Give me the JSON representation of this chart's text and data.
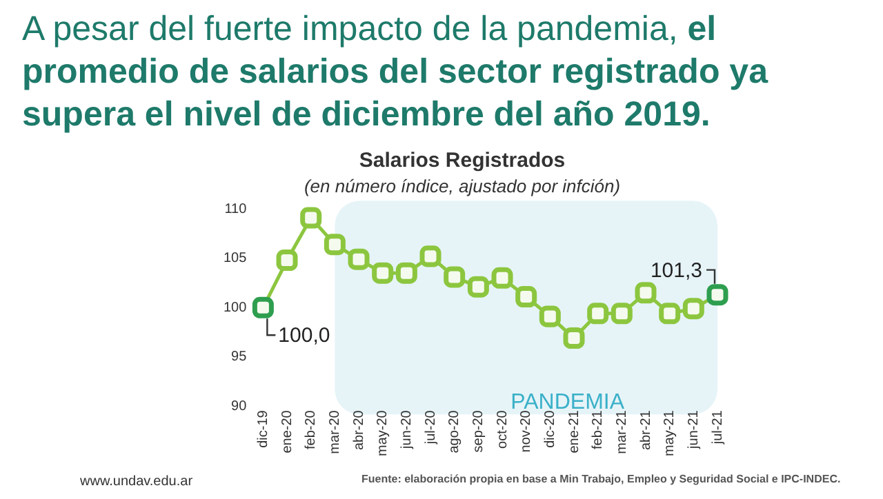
{
  "chart_data": {
    "type": "line",
    "title": "Salarios Registrados",
    "subtitle": "(en número índice, ajustado por infción)",
    "categories": [
      "dic-19",
      "ene-20",
      "feb-20",
      "mar-20",
      "abr-20",
      "may-20",
      "jun-20",
      "jul-20",
      "ago-20",
      "sep-20",
      "oct-20",
      "nov-20",
      "dic-20",
      "ene-21",
      "feb-21",
      "mar-21",
      "abr-21",
      "may-21",
      "jun-21",
      "jul-21"
    ],
    "series": [
      {
        "color": "#8cc63f",
        "colors": [
          "#2e9e4f",
          "#8cc63f",
          "#8cc63f",
          "#8cc63f",
          "#8cc63f",
          "#8cc63f",
          "#8cc63f",
          "#8cc63f",
          "#8cc63f",
          "#8cc63f",
          "#8cc63f",
          "#8cc63f",
          "#8cc63f",
          "#8cc63f",
          "#8cc63f",
          "#8cc63f",
          "#8cc63f",
          "#8cc63f",
          "#8cc63f",
          "#2e9e4f"
        ],
        "values": [
          100.0,
          104.8,
          109.1,
          106.4,
          104.9,
          103.5,
          103.5,
          105.2,
          103.1,
          102.1,
          103.0,
          101.1,
          99.1,
          96.9,
          99.4,
          99.4,
          101.5,
          99.4,
          99.9,
          101.3
        ]
      }
    ],
    "ylim": [
      90,
      110
    ],
    "yticks": [
      90,
      95,
      100,
      105,
      110
    ],
    "grid": false,
    "legend": false,
    "marker": "square",
    "bands": [
      {
        "axis": "x",
        "from": "mar-20",
        "to": "jul-21",
        "label": "PANDEMIA",
        "color": "#e6f4f8"
      }
    ],
    "annotations": [
      "A pesar del fuerte impacto de la pandemia, ",
      "el promedio de salarios del sector registrado ya supera el nivel de diciembre del año 2019.",
      {
        "text": "100,0",
        "x": "dic-19",
        "y": 100.0
      },
      {
        "text": "101,3",
        "x": "jul-21",
        "y": 101.3
      },
      "Fuente: elaboración propia en base a Min Trabajo, Empleo y Seguridad Social e IPC-INDEC.",
      "www.undav.edu.ar"
    ]
  }
}
